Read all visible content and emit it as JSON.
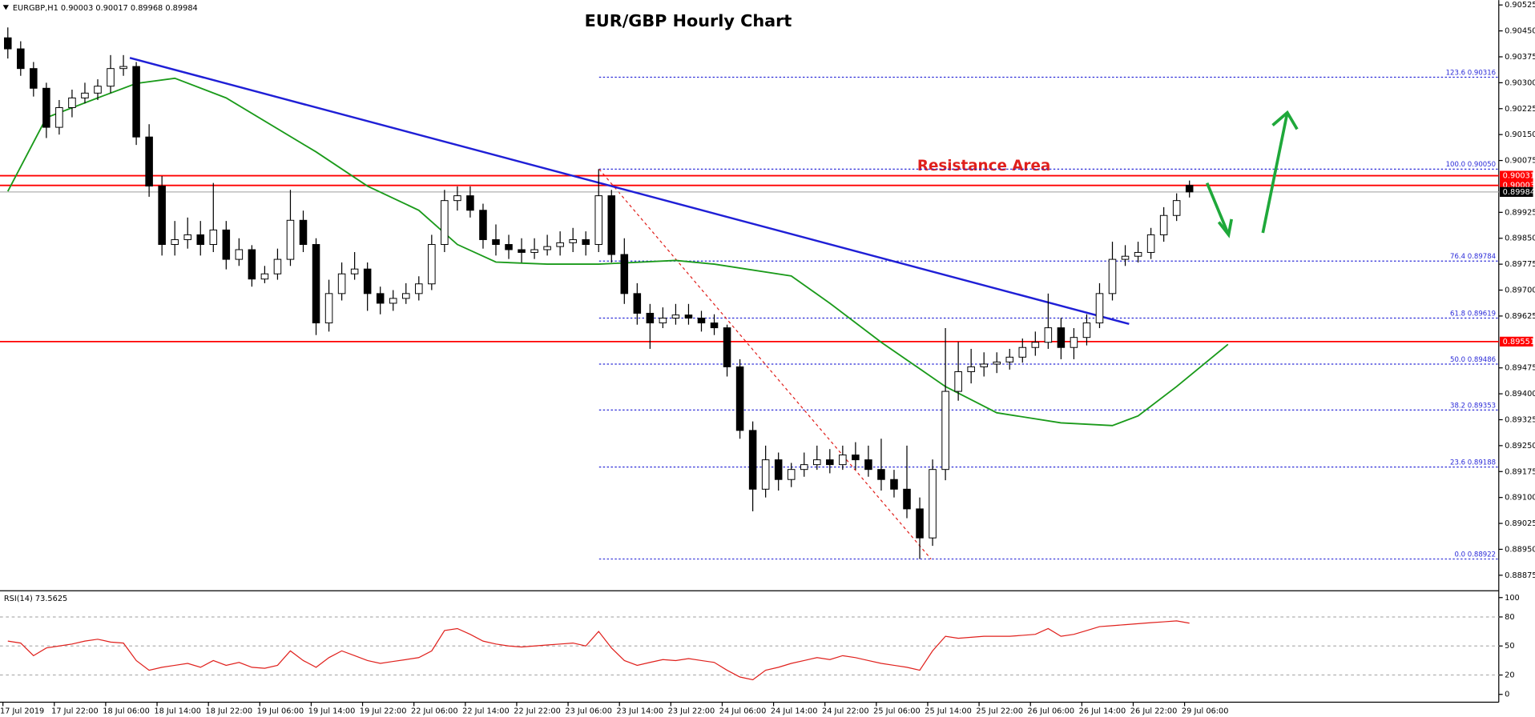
{
  "chart_data": {
    "type": "candlestick",
    "info": "EURGBP,H1 0.90003 0.90017 0.89968 0.89984",
    "title": "EUR/GBP Hourly Chart",
    "annotation": "Resistance Area",
    "ylim": [
      0.88833,
      0.90539
    ],
    "yticks": [
      0.90525,
      {
        "value": 0.9045,
        "label": "0.90450"
      },
      0.90375,
      {
        "value": 0.903,
        "label": "0.90300"
      },
      0.90225,
      {
        "value": 0.9015,
        "label": "0.90150"
      },
      0.90075,
      0.89925,
      {
        "value": 0.8985,
        "label": "0.89850"
      },
      0.89775,
      {
        "value": 0.897,
        "label": "0.89700"
      },
      0.89625,
      0.89475,
      {
        "value": 0.894,
        "label": "0.89400"
      },
      0.89325,
      {
        "value": 0.8925,
        "label": "0.89250"
      },
      0.89175,
      {
        "value": 0.891,
        "label": "0.89100"
      },
      0.89025,
      {
        "value": 0.8895,
        "label": "0.88950"
      },
      0.88875
    ],
    "time_labels": [
      "17 Jul 2019",
      "17 Jul 22:00",
      "18 Jul 06:00",
      "18 Jul 14:00",
      "18 Jul 22:00",
      "19 Jul 06:00",
      "19 Jul 14:00",
      "19 Jul 22:00",
      "22 Jul 06:00",
      "22 Jul 14:00",
      "22 Jul 22:00",
      "23 Jul 06:00",
      "23 Jul 14:00",
      "23 Jul 22:00",
      "24 Jul 06:00",
      "24 Jul 14:00",
      "24 Jul 22:00",
      "25 Jul 06:00",
      "25 Jul 14:00",
      "25 Jul 22:00",
      "26 Jul 06:00",
      "26 Jul 14:00",
      "26 Jul 22:00",
      "29 Jul 06:00"
    ],
    "candles": [
      [
        0.9043,
        0.9046,
        0.9037,
        0.90398
      ],
      [
        0.90398,
        0.9042,
        0.9032,
        0.90341
      ],
      [
        0.90341,
        0.9036,
        0.9026,
        0.90284
      ],
      [
        0.90284,
        0.903,
        0.9014,
        0.90171
      ],
      [
        0.90171,
        0.9025,
        0.9015,
        0.90228
      ],
      [
        0.90228,
        0.9028,
        0.902,
        0.90256
      ],
      [
        0.90256,
        0.903,
        0.9024,
        0.9027
      ],
      [
        0.9027,
        0.9031,
        0.9025,
        0.9029
      ],
      [
        0.9029,
        0.9038,
        0.9027,
        0.90341
      ],
      [
        0.90341,
        0.9038,
        0.9032,
        0.90347
      ],
      [
        0.90347,
        0.9036,
        0.9012,
        0.90143
      ],
      [
        0.90143,
        0.9018,
        0.8997,
        0.90001
      ],
      [
        0.90001,
        0.9003,
        0.898,
        0.89832
      ],
      [
        0.89832,
        0.899,
        0.898,
        0.89846
      ],
      [
        0.89846,
        0.8991,
        0.8982,
        0.8986
      ],
      [
        0.8986,
        0.899,
        0.898,
        0.89832
      ],
      [
        0.89832,
        0.9001,
        0.8981,
        0.89874
      ],
      [
        0.89874,
        0.899,
        0.8976,
        0.89789
      ],
      [
        0.89789,
        0.8985,
        0.8977,
        0.89817
      ],
      [
        0.89817,
        0.8983,
        0.8971,
        0.89732
      ],
      [
        0.89732,
        0.8977,
        0.8972,
        0.89747
      ],
      [
        0.89747,
        0.8982,
        0.8973,
        0.89789
      ],
      [
        0.89789,
        0.8999,
        0.8977,
        0.89902
      ],
      [
        0.89902,
        0.8993,
        0.8981,
        0.89832
      ],
      [
        0.89832,
        0.8985,
        0.8957,
        0.89605
      ],
      [
        0.89605,
        0.8973,
        0.8958,
        0.8969
      ],
      [
        0.8969,
        0.8978,
        0.8967,
        0.89747
      ],
      [
        0.89747,
        0.8981,
        0.8973,
        0.89761
      ],
      [
        0.89761,
        0.8978,
        0.8964,
        0.8969
      ],
      [
        0.8969,
        0.8971,
        0.8963,
        0.89662
      ],
      [
        0.89662,
        0.897,
        0.8964,
        0.89676
      ],
      [
        0.89676,
        0.8972,
        0.8966,
        0.8969
      ],
      [
        0.8969,
        0.8974,
        0.8967,
        0.89718
      ],
      [
        0.89718,
        0.8986,
        0.897,
        0.89832
      ],
      [
        0.89832,
        0.8999,
        0.8981,
        0.89959
      ],
      [
        0.89959,
        0.9,
        0.8993,
        0.89973
      ],
      [
        0.89973,
        0.9,
        0.8991,
        0.89931
      ],
      [
        0.89931,
        0.8995,
        0.8982,
        0.89846
      ],
      [
        0.89846,
        0.8989,
        0.898,
        0.89832
      ],
      [
        0.89832,
        0.8986,
        0.8979,
        0.89817
      ],
      [
        0.89817,
        0.8985,
        0.8978,
        0.89809
      ],
      [
        0.89809,
        0.8985,
        0.8979,
        0.89817
      ],
      [
        0.89817,
        0.8986,
        0.898,
        0.89826
      ],
      [
        0.89826,
        0.8987,
        0.898,
        0.89837
      ],
      [
        0.89837,
        0.8988,
        0.8981,
        0.89846
      ],
      [
        0.89846,
        0.8987,
        0.898,
        0.89832
      ],
      [
        0.89832,
        0.9005,
        0.8981,
        0.89973
      ],
      [
        0.89973,
        0.8999,
        0.8978,
        0.89803
      ],
      [
        0.89803,
        0.8985,
        0.8966,
        0.8969
      ],
      [
        0.8969,
        0.8972,
        0.896,
        0.89633
      ],
      [
        0.89633,
        0.8966,
        0.8953,
        0.89605
      ],
      [
        0.89605,
        0.8965,
        0.8959,
        0.89619
      ],
      [
        0.89619,
        0.8966,
        0.896,
        0.89628
      ],
      [
        0.89628,
        0.8966,
        0.896,
        0.89619
      ],
      [
        0.89619,
        0.8964,
        0.8958,
        0.89605
      ],
      [
        0.89605,
        0.8963,
        0.8957,
        0.89591
      ],
      [
        0.89591,
        0.896,
        0.8945,
        0.89478
      ],
      [
        0.89478,
        0.895,
        0.8927,
        0.89294
      ],
      [
        0.89294,
        0.8932,
        0.8906,
        0.89124
      ],
      [
        0.89124,
        0.8925,
        0.891,
        0.89209
      ],
      [
        0.89209,
        0.8923,
        0.8912,
        0.89152
      ],
      [
        0.89152,
        0.892,
        0.8913,
        0.89181
      ],
      [
        0.89181,
        0.8923,
        0.8916,
        0.89195
      ],
      [
        0.89195,
        0.8925,
        0.8918,
        0.89209
      ],
      [
        0.89209,
        0.8924,
        0.8917,
        0.89195
      ],
      [
        0.89195,
        0.8925,
        0.8918,
        0.89223
      ],
      [
        0.89223,
        0.8926,
        0.8918,
        0.89209
      ],
      [
        0.89209,
        0.8925,
        0.8916,
        0.89181
      ],
      [
        0.89181,
        0.8927,
        0.8912,
        0.89152
      ],
      [
        0.89152,
        0.8918,
        0.891,
        0.89124
      ],
      [
        0.89124,
        0.8925,
        0.8904,
        0.89067
      ],
      [
        0.89067,
        0.891,
        0.88922,
        0.88983
      ],
      [
        0.88983,
        0.8921,
        0.8896,
        0.89181
      ],
      [
        0.89181,
        0.8959,
        0.8915,
        0.89407
      ],
      [
        0.89407,
        0.8955,
        0.8938,
        0.89464
      ],
      [
        0.89464,
        0.8953,
        0.8943,
        0.89478
      ],
      [
        0.89478,
        0.8952,
        0.8945,
        0.89486
      ],
      [
        0.89486,
        0.8952,
        0.8946,
        0.89492
      ],
      [
        0.89492,
        0.8953,
        0.8947,
        0.89506
      ],
      [
        0.89506,
        0.8956,
        0.8949,
        0.89534
      ],
      [
        0.89534,
        0.8958,
        0.8951,
        0.89549
      ],
      [
        0.89549,
        0.8969,
        0.8953,
        0.89591
      ],
      [
        0.89591,
        0.8962,
        0.895,
        0.89534
      ],
      [
        0.89534,
        0.8959,
        0.895,
        0.89563
      ],
      [
        0.89563,
        0.8963,
        0.8954,
        0.89605
      ],
      [
        0.89605,
        0.8972,
        0.8959,
        0.8969
      ],
      [
        0.8969,
        0.8984,
        0.8967,
        0.89789
      ],
      [
        0.89789,
        0.8983,
        0.8977,
        0.89798
      ],
      [
        0.89798,
        0.8984,
        0.8978,
        0.89809
      ],
      [
        0.89809,
        0.8988,
        0.8979,
        0.8986
      ],
      [
        0.8986,
        0.8994,
        0.8984,
        0.89916
      ],
      [
        0.89916,
        0.8998,
        0.899,
        0.89959
      ],
      [
        0.90003,
        0.90017,
        0.89968,
        0.89984
      ]
    ],
    "ma": {
      "color": "#1a9a1a",
      "x": [
        0,
        3,
        7,
        10,
        13,
        17,
        24,
        28,
        32,
        35,
        38,
        42,
        46,
        52,
        55,
        61,
        64,
        68,
        73,
        77,
        82,
        86,
        88,
        91,
        95
      ],
      "values": [
        0.89986,
        0.90199,
        0.90256,
        0.90298,
        0.90313,
        0.90256,
        0.901,
        0.90001,
        0.89931,
        0.89832,
        0.89781,
        0.89775,
        0.89775,
        0.89786,
        0.89775,
        0.89741,
        0.89662,
        0.89549,
        0.89421,
        0.89345,
        0.89316,
        0.89308,
        0.89336,
        0.89421,
        0.89543
      ]
    },
    "trendline": {
      "color": "#1f1fd6",
      "x": [
        9.5,
        87.3
      ],
      "values": [
        0.90372,
        0.89602
      ]
    },
    "price_lines": [
      {
        "value": 0.90031,
        "color": "#ff0000"
      },
      {
        "value": 0.90003,
        "color": "#ff0000"
      },
      {
        "value": 0.89984,
        "color": "#000000"
      },
      {
        "value": 0.89551,
        "color": "#ff0000"
      }
    ],
    "fib": [
      {
        "ratio": "123.6",
        "price": 0.90316
      },
      {
        "ratio": "100.0",
        "price": {
          "value": 0.9005,
          "label": "0.90050"
        }
      },
      {
        "ratio": "76.4",
        "price": 0.89784
      },
      {
        "ratio": "61.8",
        "price": 0.89619
      },
      {
        "ratio": "50.0",
        "price": 0.89486
      },
      {
        "ratio": "38.2",
        "price": 0.89353
      },
      {
        "ratio": "23.6",
        "price": 0.89188
      },
      {
        "ratio": "0.0",
        "price": 0.88922
      }
    ],
    "rsi": {
      "label": "RSI(14) 73.5625",
      "color": "#e0201c",
      "ylim": [
        0,
        100
      ],
      "yticks": [
        100,
        80,
        50,
        20,
        0
      ],
      "values": [
        55,
        53,
        40,
        48,
        50,
        52,
        55,
        57,
        54,
        53,
        35,
        25,
        28,
        30,
        32,
        28,
        35,
        30,
        33,
        28,
        27,
        30,
        45,
        35,
        28,
        38,
        45,
        40,
        35,
        32,
        34,
        36,
        38,
        45,
        66,
        68,
        62,
        55,
        52,
        50,
        49,
        50,
        51,
        52,
        53,
        50,
        65,
        48,
        35,
        30,
        33,
        36,
        35,
        37,
        35,
        33,
        25,
        18,
        15,
        25,
        28,
        32,
        35,
        38,
        36,
        40,
        38,
        35,
        32,
        30,
        28,
        25,
        45,
        60,
        58,
        59,
        60,
        60,
        60,
        61,
        62,
        68,
        60,
        62,
        66,
        70,
        71,
        72,
        73,
        74,
        75,
        76,
        73.5625
      ]
    }
  }
}
